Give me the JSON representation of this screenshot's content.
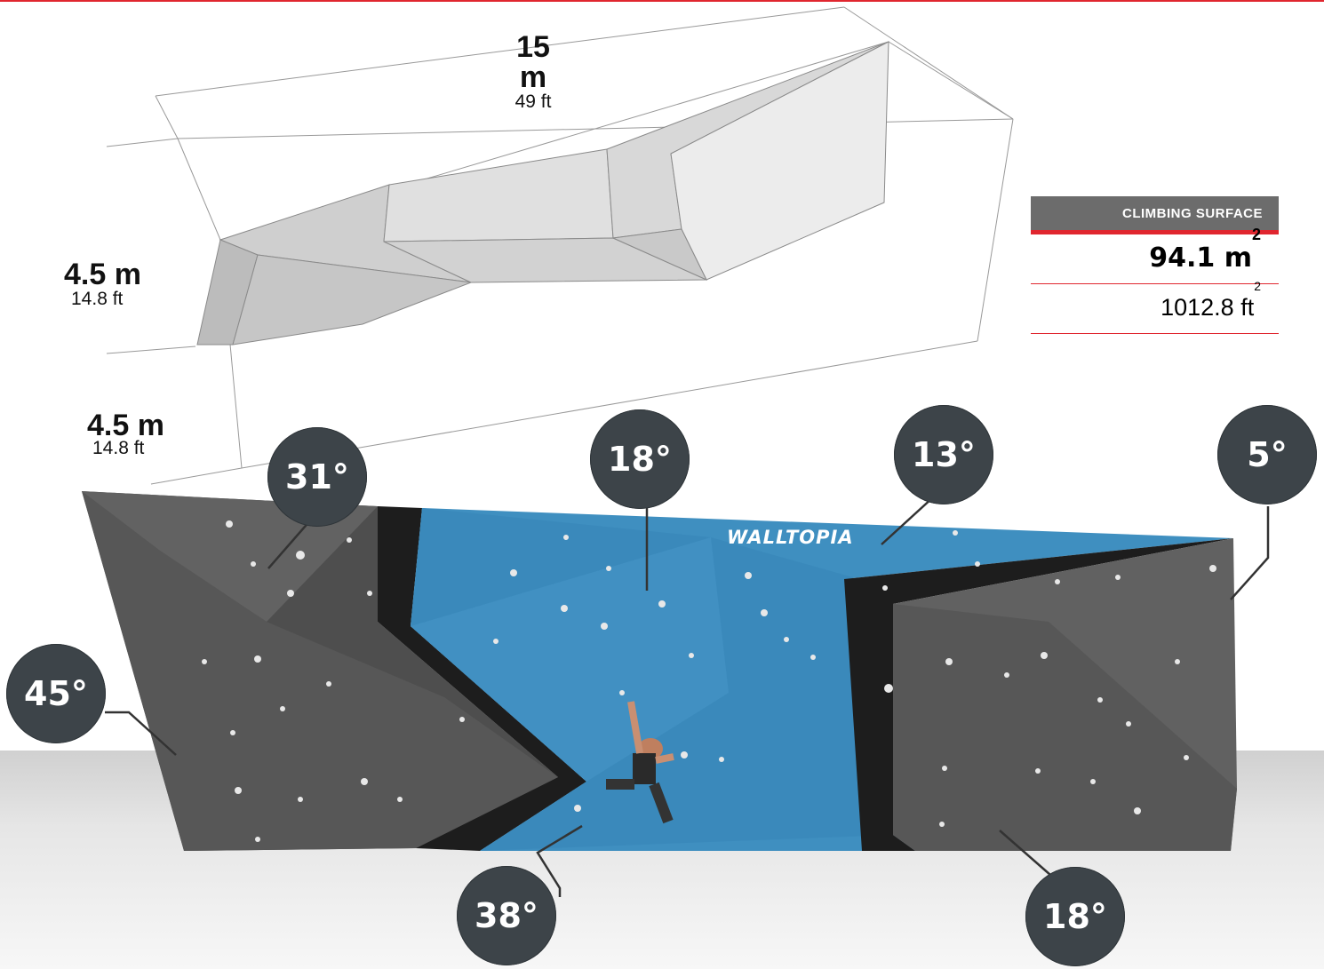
{
  "dimensions": {
    "length": {
      "metric": "15 m",
      "imperial": "49 ft"
    },
    "height_upper": {
      "metric": "4.5 m",
      "imperial": "14.8 ft"
    },
    "height_lower": {
      "metric": "4.5 m",
      "imperial": "14.8 ft"
    }
  },
  "climbing_surface": {
    "header": "CLIMBING SURFACE",
    "area_metric_value": "94.1 m",
    "area_metric_exp": "2",
    "area_imperial_value": "1012.8 ft",
    "area_imperial_exp": "2"
  },
  "brand": {
    "logo_text": "WALLTOPIA"
  },
  "angles": [
    {
      "id": "angle-31",
      "label": "31°"
    },
    {
      "id": "angle-18-top",
      "label": "18°"
    },
    {
      "id": "angle-13",
      "label": "13°"
    },
    {
      "id": "angle-5",
      "label": "5°"
    },
    {
      "id": "angle-45",
      "label": "45°"
    },
    {
      "id": "angle-38",
      "label": "38°"
    },
    {
      "id": "angle-18-bottom",
      "label": "18°"
    }
  ],
  "colors": {
    "accent_red": "#e0262f",
    "badge": "#3d4449",
    "panel_blue": "#3f8fc0",
    "panel_grey": "#5a5a5a",
    "header_grey": "#6c6c6c"
  }
}
